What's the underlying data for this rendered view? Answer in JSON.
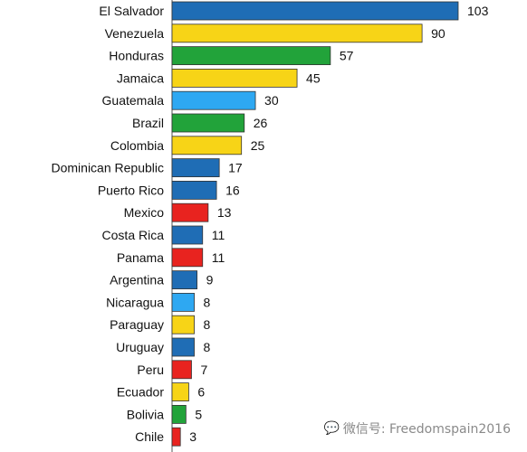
{
  "chart_data": {
    "type": "bar",
    "orientation": "horizontal",
    "categories": [
      "El Salvador",
      "Venezuela",
      "Honduras",
      "Jamaica",
      "Guatemala",
      "Brazil",
      "Colombia",
      "Dominican Republic",
      "Puerto Rico",
      "Mexico",
      "Costa Rica",
      "Panama",
      "Argentina",
      "Nicaragua",
      "Paraguay",
      "Uruguay",
      "Peru",
      "Ecuador",
      "Bolivia",
      "Chile"
    ],
    "values": [
      103,
      90,
      57,
      45,
      30,
      26,
      25,
      17,
      16,
      13,
      11,
      11,
      9,
      8,
      8,
      8,
      7,
      6,
      5,
      3
    ],
    "bar_colors": [
      "#1f6db5",
      "#f7d417",
      "#22a33a",
      "#f7d417",
      "#2ea8f2",
      "#22a33a",
      "#f7d417",
      "#1f6db5",
      "#1f6db5",
      "#e8231f",
      "#1f6db5",
      "#e8231f",
      "#1f6db5",
      "#2ea8f2",
      "#f7d417",
      "#1f6db5",
      "#e8231f",
      "#f7d417",
      "#22a33a",
      "#e8231f"
    ],
    "title": "",
    "xlabel": "",
    "ylabel": "",
    "xlim": [
      0,
      103
    ],
    "grid": false,
    "legend": "none"
  },
  "watermark": {
    "icon": "wechat-icon",
    "text": "微信号: Freedomspain2016"
  }
}
